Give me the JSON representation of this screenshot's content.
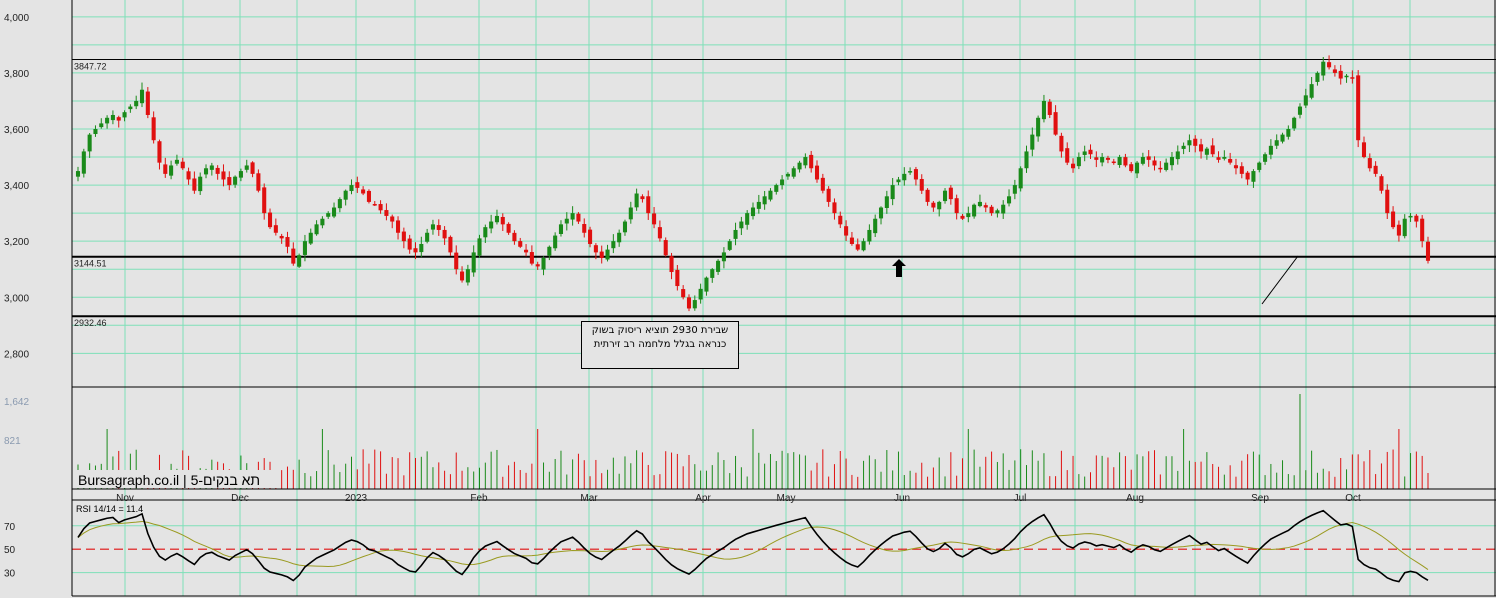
{
  "brand": "Bursagraph.co.il",
  "instrument": "תא בנקים-5",
  "annotation": "שבירת 2930 תוציא ריסוק בשוק כנראה בגלל מלחמה רב זירתית",
  "levels": [
    {
      "label": "3847.72",
      "value": 3847.72
    },
    {
      "label": "3144.51",
      "value": 3144.51
    },
    {
      "label": "2932.46",
      "value": 2932.46
    }
  ],
  "rsi_label": "RSI 14/14 = 11.4",
  "colors": {
    "up": "#1a8a1a",
    "down": "#e01010",
    "grid": "#7ee0b8",
    "bg": "#e4e4e4"
  },
  "chart_data": [
    {
      "type": "candlestick",
      "price_axis": {
        "ylim": [
          2680,
          4060
        ],
        "ticks": [
          "4,000",
          "3,800",
          "3,600",
          "3,400",
          "3,200",
          "3,000",
          "2,800"
        ]
      },
      "months": [
        "Nov",
        "Dec",
        "2023",
        "Feb",
        "Mar",
        "Apr",
        "May",
        "Jun",
        "Jul",
        "Aug",
        "Sep",
        "Oct"
      ],
      "close": [
        3450,
        3520,
        3580,
        3600,
        3620,
        3640,
        3650,
        3630,
        3660,
        3680,
        3700,
        3740,
        3650,
        3560,
        3480,
        3440,
        3470,
        3490,
        3460,
        3420,
        3380,
        3430,
        3460,
        3470,
        3440,
        3420,
        3400,
        3430,
        3450,
        3470,
        3440,
        3380,
        3300,
        3250,
        3230,
        3210,
        3180,
        3120,
        3150,
        3200,
        3230,
        3260,
        3280,
        3300,
        3320,
        3350,
        3380,
        3400,
        3390,
        3370,
        3340,
        3330,
        3310,
        3290,
        3270,
        3230,
        3200,
        3170,
        3160,
        3190,
        3230,
        3260,
        3240,
        3210,
        3160,
        3100,
        3060,
        3100,
        3160,
        3210,
        3250,
        3270,
        3290,
        3260,
        3230,
        3200,
        3180,
        3160,
        3120,
        3110,
        3140,
        3180,
        3220,
        3260,
        3280,
        3300,
        3270,
        3230,
        3190,
        3160,
        3140,
        3170,
        3200,
        3230,
        3270,
        3320,
        3370,
        3350,
        3300,
        3260,
        3210,
        3150,
        3090,
        3040,
        3000,
        2960,
        2990,
        3030,
        3070,
        3100,
        3130,
        3160,
        3200,
        3240,
        3270,
        3300,
        3320,
        3340,
        3360,
        3380,
        3400,
        3420,
        3440,
        3460,
        3480,
        3500,
        3460,
        3420,
        3380,
        3340,
        3300,
        3260,
        3220,
        3190,
        3170,
        3200,
        3240,
        3280,
        3320,
        3360,
        3400,
        3420,
        3440,
        3450,
        3420,
        3380,
        3340,
        3320,
        3340,
        3380,
        3350,
        3300,
        3280,
        3300,
        3330,
        3340,
        3320,
        3300,
        3310,
        3330,
        3360,
        3400,
        3460,
        3520,
        3580,
        3640,
        3700,
        3650,
        3580,
        3520,
        3480,
        3460,
        3500,
        3520,
        3510,
        3490,
        3500,
        3490,
        3480,
        3500,
        3470,
        3450,
        3480,
        3500,
        3490,
        3470,
        3460,
        3480,
        3500,
        3520,
        3540,
        3560,
        3540,
        3520,
        3530,
        3510,
        3490,
        3500,
        3480,
        3460,
        3440,
        3420,
        3450,
        3480,
        3510,
        3540,
        3560,
        3580,
        3600,
        3640,
        3680,
        3720,
        3760,
        3800,
        3840,
        3820,
        3800,
        3780,
        3790,
        3780,
        3560,
        3500,
        3460,
        3440,
        3380,
        3300,
        3250,
        3220,
        3280,
        3290,
        3270,
        3200,
        3130
      ],
      "volume_axis": {
        "ticks": [
          "1,642",
          "821"
        ]
      }
    },
    {
      "type": "line",
      "name": "RSI 14/14",
      "ylim": [
        10,
        92
      ],
      "ticks": [
        "70",
        "50",
        "30"
      ],
      "reference": 50
    }
  ]
}
